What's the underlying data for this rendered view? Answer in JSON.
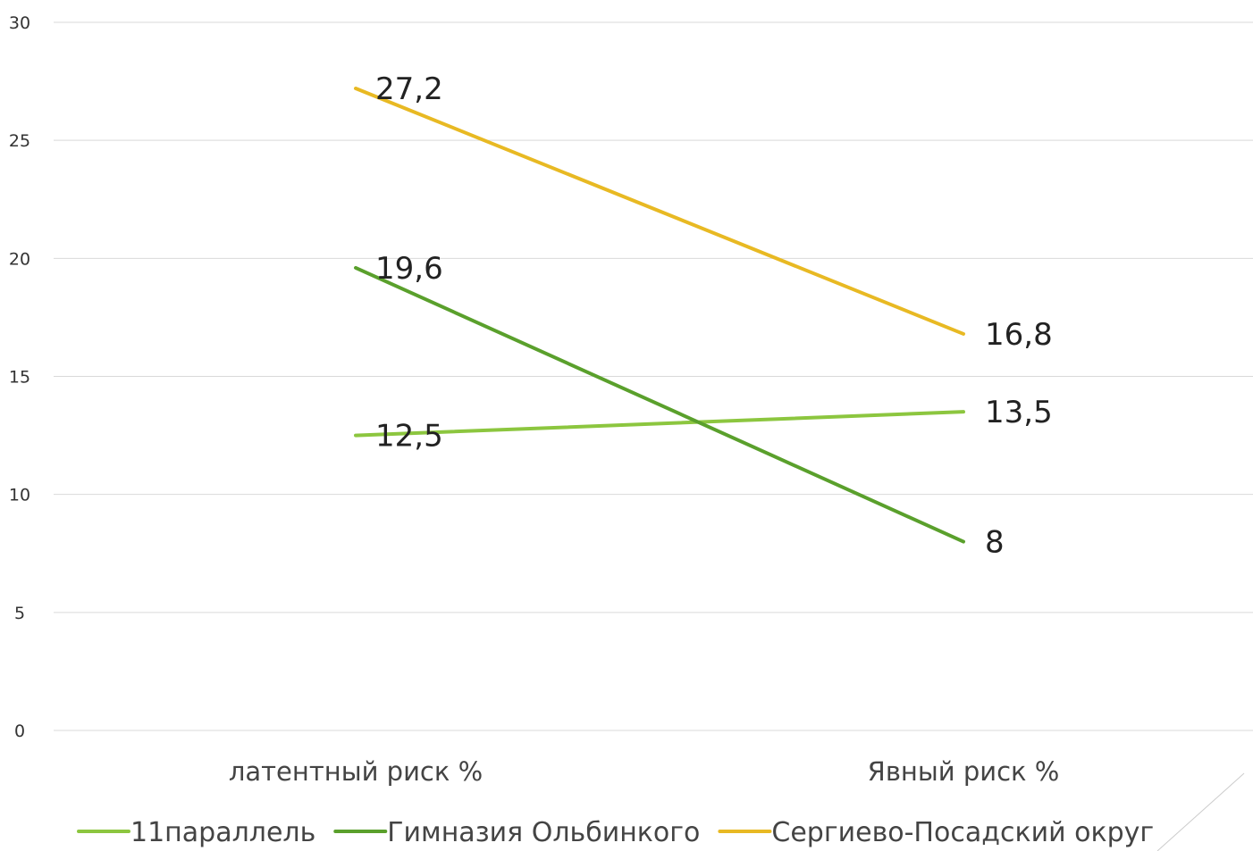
{
  "chart_data": {
    "type": "line",
    "title": "",
    "xlabel": "",
    "ylabel": "",
    "categories": [
      "латентный риск %",
      "Явный риск %"
    ],
    "ylim": [
      0,
      30
    ],
    "yticks": [
      0,
      5,
      10,
      15,
      20,
      25,
      30
    ],
    "grid": true,
    "legend_position": "bottom",
    "data_labels": true,
    "series": [
      {
        "name": "11параллель",
        "color": "#8cc63f",
        "values": [
          12.5,
          13.5
        ],
        "labels": [
          "12,5",
          "13,5"
        ]
      },
      {
        "name": "Гимназия Ольбинкого",
        "color": "#5aa02c",
        "values": [
          19.6,
          8
        ],
        "labels": [
          "19,6",
          "8"
        ]
      },
      {
        "name": "Сергиево-Посадский округ",
        "color": "#e8b923",
        "values": [
          27.2,
          16.8
        ],
        "labels": [
          "27,2",
          "16,8"
        ]
      }
    ]
  }
}
